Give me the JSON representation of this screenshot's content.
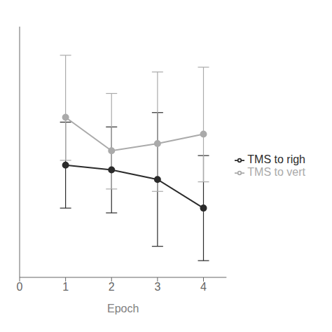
{
  "chart_data": {
    "type": "line",
    "xlabel": "Epoch",
    "x": [
      1,
      2,
      3,
      4
    ],
    "series": [
      {
        "name": "TMS to righ",
        "color": "#2b2b2b",
        "marker": "o",
        "line_style": "solid",
        "values": [
          52,
          50,
          46,
          34
        ],
        "yerr_lower": [
          18,
          18,
          28,
          22
        ],
        "yerr_upper": [
          18,
          18,
          28,
          22
        ]
      },
      {
        "name": "TMS to vert",
        "color": "#aaaaaa",
        "marker": "o",
        "line_style": "solid",
        "values": [
          72,
          58,
          61,
          65
        ],
        "yerr_lower": [
          18,
          16,
          20,
          20
        ],
        "yerr_upper": [
          26,
          24,
          30,
          28
        ]
      }
    ],
    "xlim": [
      0,
      4.5
    ],
    "xticks": [
      0,
      1,
      2,
      3,
      4
    ],
    "ylim": [
      5,
      110
    ],
    "tick_labels": "x",
    "legend": "right"
  }
}
